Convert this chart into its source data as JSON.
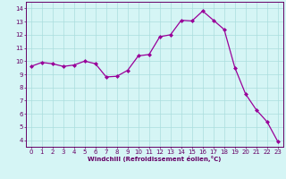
{
  "x": [
    0,
    1,
    2,
    3,
    4,
    5,
    6,
    7,
    8,
    9,
    10,
    11,
    12,
    13,
    14,
    15,
    16,
    17,
    18,
    19,
    20,
    21,
    22,
    23
  ],
  "y": [
    9.6,
    9.9,
    9.8,
    9.6,
    9.7,
    10.0,
    9.8,
    8.8,
    8.85,
    9.3,
    10.4,
    10.5,
    11.85,
    12.0,
    13.1,
    13.05,
    13.8,
    13.1,
    12.4,
    9.5,
    7.5,
    6.3,
    5.4,
    3.9
  ],
  "line_color": "#990099",
  "marker": "D",
  "marker_size": 2.0,
  "bg_color": "#d5f5f5",
  "grid_color": "#aadddd",
  "xlabel": "Windchill (Refroidissement éolien,°C)",
  "ylabel_ticks": [
    4,
    5,
    6,
    7,
    8,
    9,
    10,
    11,
    12,
    13,
    14
  ],
  "xlim": [
    -0.5,
    23.5
  ],
  "ylim": [
    3.5,
    14.5
  ],
  "xticks": [
    0,
    1,
    2,
    3,
    4,
    5,
    6,
    7,
    8,
    9,
    10,
    11,
    12,
    13,
    14,
    15,
    16,
    17,
    18,
    19,
    20,
    21,
    22,
    23
  ],
  "spine_color": "#660066",
  "tick_color": "#660066",
  "label_color": "#660066"
}
